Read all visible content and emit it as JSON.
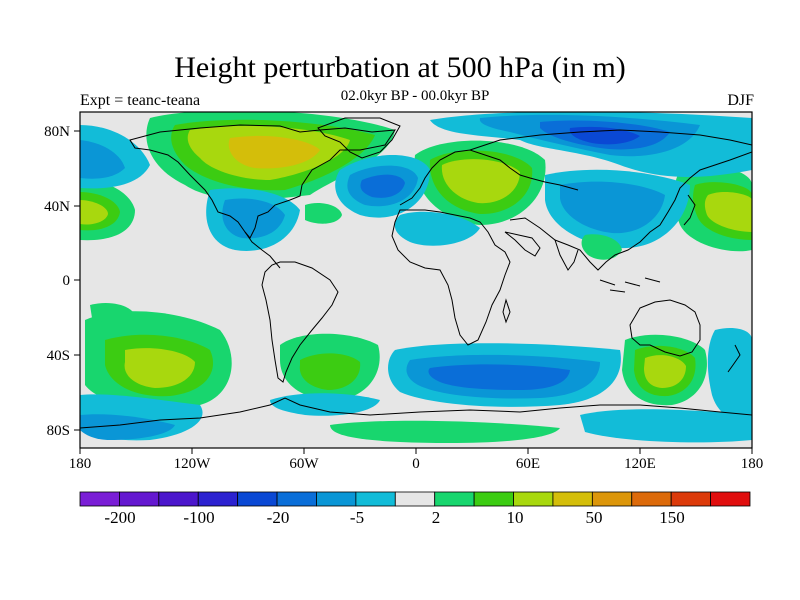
{
  "title": "Height perturbation at 500 hPa (in m)",
  "subtitle_center": "02.0kyr BP - 00.0kyr BP",
  "subtitle_left": "Expt = teanc-teana",
  "subtitle_right": "DJF",
  "x_ticks": [
    "180",
    "120W",
    "60W",
    "0",
    "60E",
    "120E",
    "180"
  ],
  "y_ticks": [
    "80N",
    "40N",
    "0",
    "40S",
    "80S"
  ],
  "colorbar": {
    "colors": [
      "#7a1ed6",
      "#6418d0",
      "#4b16cc",
      "#2c22d0",
      "#0a48d4",
      "#0a6ed8",
      "#0a96d6",
      "#12bcd8",
      "#e6e6e6",
      "#18d66e",
      "#3ccc12",
      "#a8d80e",
      "#d4be0a",
      "#dc960a",
      "#dc6a0a",
      "#dc3a0a",
      "#e00e0e"
    ],
    "labels": [
      "-200",
      "-100",
      "-20",
      "-5",
      "2",
      "10",
      "50",
      "150"
    ]
  },
  "map": {
    "background_color": "#e6e6e6",
    "coastline_color": "#000000"
  }
}
